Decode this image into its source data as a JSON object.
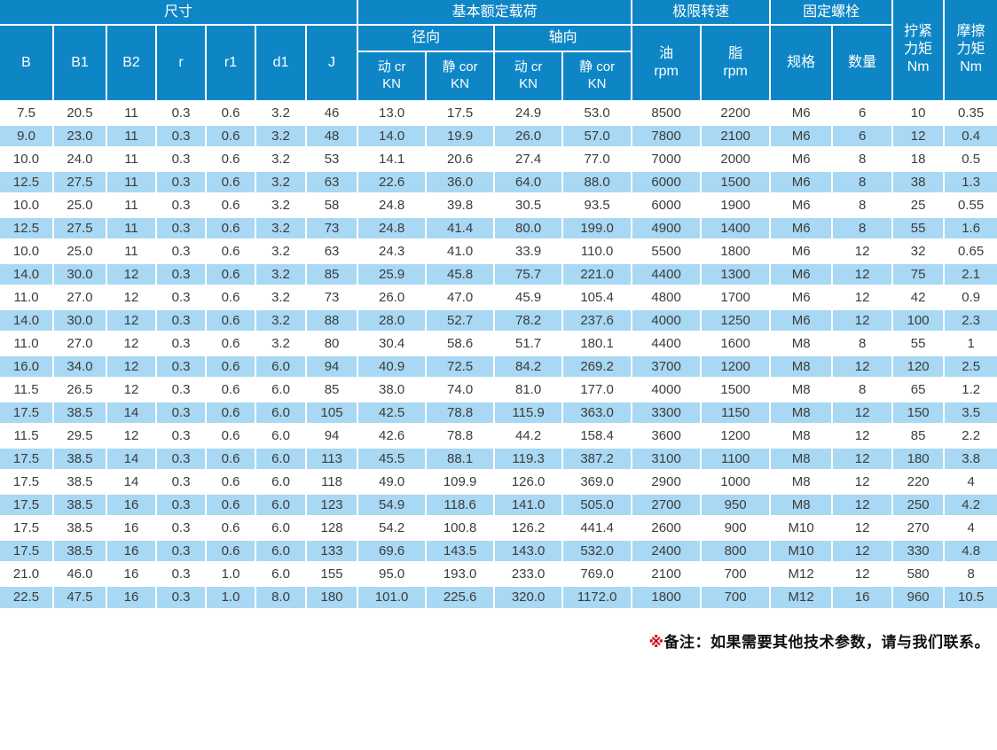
{
  "colors": {
    "header_bg": "#0e86c6",
    "row_alt": "#a8d8f3",
    "body_text": "#3c3c3c",
    "note_red": "#cc1111",
    "note_black": "#111111"
  },
  "table": {
    "header": {
      "dimensions": "尺寸",
      "basic_load": "基本额定载荷",
      "radial": "径向",
      "axial": "轴向",
      "limit_speed": "极限转速",
      "fixing_bolt": "固定螺栓",
      "tightening_torque": "拧紧\n力矩\nNm",
      "friction_torque": "摩擦\n力矩\nNm",
      "dim_cols": [
        "B",
        "B1",
        "B2",
        "r",
        "r1",
        "d1",
        "J"
      ],
      "load_cols": [
        "动 cr\nKN",
        "静 cor\nKN",
        "动 cr\nKN",
        "静 cor\nKN"
      ],
      "oil": "油\nrpm",
      "grease": "脂\nrpm",
      "bolt_spec": "规格",
      "bolt_qty": "数量"
    },
    "rows": [
      [
        "7.5",
        "20.5",
        "11",
        "0.3",
        "0.6",
        "3.2",
        "46",
        "13.0",
        "17.5",
        "24.9",
        "53.0",
        "8500",
        "2200",
        "M6",
        "6",
        "10",
        "0.35"
      ],
      [
        "9.0",
        "23.0",
        "11",
        "0.3",
        "0.6",
        "3.2",
        "48",
        "14.0",
        "19.9",
        "26.0",
        "57.0",
        "7800",
        "2100",
        "M6",
        "6",
        "12",
        "0.4"
      ],
      [
        "10.0",
        "24.0",
        "11",
        "0.3",
        "0.6",
        "3.2",
        "53",
        "14.1",
        "20.6",
        "27.4",
        "77.0",
        "7000",
        "2000",
        "M6",
        "8",
        "18",
        "0.5"
      ],
      [
        "12.5",
        "27.5",
        "11",
        "0.3",
        "0.6",
        "3.2",
        "63",
        "22.6",
        "36.0",
        "64.0",
        "88.0",
        "6000",
        "1500",
        "M6",
        "8",
        "38",
        "1.3"
      ],
      [
        "10.0",
        "25.0",
        "11",
        "0.3",
        "0.6",
        "3.2",
        "58",
        "24.8",
        "39.8",
        "30.5",
        "93.5",
        "6000",
        "1900",
        "M6",
        "8",
        "25",
        "0.55"
      ],
      [
        "12.5",
        "27.5",
        "11",
        "0.3",
        "0.6",
        "3.2",
        "73",
        "24.8",
        "41.4",
        "80.0",
        "199.0",
        "4900",
        "1400",
        "M6",
        "8",
        "55",
        "1.6"
      ],
      [
        "10.0",
        "25.0",
        "11",
        "0.3",
        "0.6",
        "3.2",
        "63",
        "24.3",
        "41.0",
        "33.9",
        "110.0",
        "5500",
        "1800",
        "M6",
        "12",
        "32",
        "0.65"
      ],
      [
        "14.0",
        "30.0",
        "12",
        "0.3",
        "0.6",
        "3.2",
        "85",
        "25.9",
        "45.8",
        "75.7",
        "221.0",
        "4400",
        "1300",
        "M6",
        "12",
        "75",
        "2.1"
      ],
      [
        "11.0",
        "27.0",
        "12",
        "0.3",
        "0.6",
        "3.2",
        "73",
        "26.0",
        "47.0",
        "45.9",
        "105.4",
        "4800",
        "1700",
        "M6",
        "12",
        "42",
        "0.9"
      ],
      [
        "14.0",
        "30.0",
        "12",
        "0.3",
        "0.6",
        "3.2",
        "88",
        "28.0",
        "52.7",
        "78.2",
        "237.6",
        "4000",
        "1250",
        "M6",
        "12",
        "100",
        "2.3"
      ],
      [
        "11.0",
        "27.0",
        "12",
        "0.3",
        "0.6",
        "3.2",
        "80",
        "30.4",
        "58.6",
        "51.7",
        "180.1",
        "4400",
        "1600",
        "M8",
        "8",
        "55",
        "1"
      ],
      [
        "16.0",
        "34.0",
        "12",
        "0.3",
        "0.6",
        "6.0",
        "94",
        "40.9",
        "72.5",
        "84.2",
        "269.2",
        "3700",
        "1200",
        "M8",
        "12",
        "120",
        "2.5"
      ],
      [
        "11.5",
        "26.5",
        "12",
        "0.3",
        "0.6",
        "6.0",
        "85",
        "38.0",
        "74.0",
        "81.0",
        "177.0",
        "4000",
        "1500",
        "M8",
        "8",
        "65",
        "1.2"
      ],
      [
        "17.5",
        "38.5",
        "14",
        "0.3",
        "0.6",
        "6.0",
        "105",
        "42.5",
        "78.8",
        "115.9",
        "363.0",
        "3300",
        "1150",
        "M8",
        "12",
        "150",
        "3.5"
      ],
      [
        "11.5",
        "29.5",
        "12",
        "0.3",
        "0.6",
        "6.0",
        "94",
        "42.6",
        "78.8",
        "44.2",
        "158.4",
        "3600",
        "1200",
        "M8",
        "12",
        "85",
        "2.2"
      ],
      [
        "17.5",
        "38.5",
        "14",
        "0.3",
        "0.6",
        "6.0",
        "113",
        "45.5",
        "88.1",
        "119.3",
        "387.2",
        "3100",
        "1100",
        "M8",
        "12",
        "180",
        "3.8"
      ],
      [
        "17.5",
        "38.5",
        "14",
        "0.3",
        "0.6",
        "6.0",
        "118",
        "49.0",
        "109.9",
        "126.0",
        "369.0",
        "2900",
        "1000",
        "M8",
        "12",
        "220",
        "4"
      ],
      [
        "17.5",
        "38.5",
        "16",
        "0.3",
        "0.6",
        "6.0",
        "123",
        "54.9",
        "118.6",
        "141.0",
        "505.0",
        "2700",
        "950",
        "M8",
        "12",
        "250",
        "4.2"
      ],
      [
        "17.5",
        "38.5",
        "16",
        "0.3",
        "0.6",
        "6.0",
        "128",
        "54.2",
        "100.8",
        "126.2",
        "441.4",
        "2600",
        "900",
        "M10",
        "12",
        "270",
        "4"
      ],
      [
        "17.5",
        "38.5",
        "16",
        "0.3",
        "0.6",
        "6.0",
        "133",
        "69.6",
        "143.5",
        "143.0",
        "532.0",
        "2400",
        "800",
        "M10",
        "12",
        "330",
        "4.8"
      ],
      [
        "21.0",
        "46.0",
        "16",
        "0.3",
        "1.0",
        "6.0",
        "155",
        "95.0",
        "193.0",
        "233.0",
        "769.0",
        "2100",
        "700",
        "M12",
        "12",
        "580",
        "8"
      ],
      [
        "22.5",
        "47.5",
        "16",
        "0.3",
        "1.0",
        "8.0",
        "180",
        "101.0",
        "225.6",
        "320.0",
        "1172.0",
        "1800",
        "700",
        "M12",
        "16",
        "960",
        "10.5"
      ]
    ]
  },
  "note": {
    "marker": "※",
    "text": "备注：如果需要其他技术参数，请与我们联系。"
  }
}
